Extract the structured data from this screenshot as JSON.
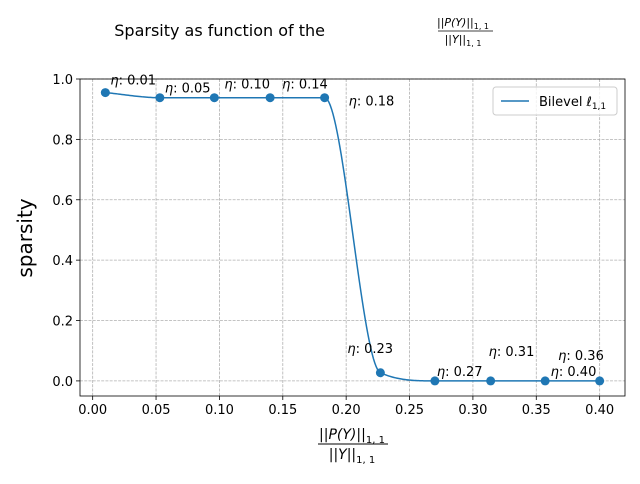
{
  "chart_data": {
    "type": "line",
    "title": {
      "prefix": "Sparsity as function of the ",
      "fraction": {
        "numerator": "||P(Y)||",
        "numerator_sub": "1, 1",
        "denominator": "||Y||",
        "denominator_sub": "1, 1"
      }
    },
    "xlabel": {
      "numerator": "||P(Y)||",
      "numerator_sub": "1, 1",
      "denominator": "||Y||",
      "denominator_sub": "1, 1"
    },
    "ylabel": "sparsity",
    "xlim": [
      -0.01,
      0.42
    ],
    "ylim": [
      -0.05,
      1.0
    ],
    "x_ticks": [
      "0.00",
      "0.05",
      "0.10",
      "0.15",
      "0.20",
      "0.25",
      "0.30",
      "0.35",
      "0.40"
    ],
    "y_ticks": [
      "0.0",
      "0.2",
      "0.4",
      "0.6",
      "0.8",
      "1.0"
    ],
    "grid": true,
    "legend_position": "upper right",
    "series": [
      {
        "name": "Bilevel",
        "name_math": "ℓ",
        "name_sub": "1,1",
        "color": "#1f77b4",
        "x": [
          0.01,
          0.053,
          0.096,
          0.14,
          0.183,
          0.227,
          0.27,
          0.314,
          0.357,
          0.4
        ],
        "y": [
          0.955,
          0.938,
          0.938,
          0.938,
          0.938,
          0.027,
          0.0,
          0.0,
          0.0,
          0.0
        ]
      }
    ],
    "annotations": [
      {
        "eta": "η",
        "value": ": 0.01",
        "x": 0.01,
        "y": 0.955
      },
      {
        "eta": "η",
        "value": ": 0.05",
        "x": 0.053,
        "y": 0.938
      },
      {
        "eta": "η",
        "value": ": 0.10",
        "x": 0.096,
        "y": 0.938
      },
      {
        "eta": "η",
        "value": ": 0.14",
        "x": 0.14,
        "y": 0.938
      },
      {
        "eta": "η",
        "value": ": 0.18",
        "x": 0.183,
        "y": 0.938
      },
      {
        "eta": "η",
        "value": ": 0.23",
        "x": 0.227,
        "y": 0.027
      },
      {
        "eta": "η",
        "value": ": 0.27",
        "x": 0.27,
        "y": 0.0
      },
      {
        "eta": "η",
        "value": ": 0.31",
        "x": 0.314,
        "y": 0.0
      },
      {
        "eta": "η",
        "value": ": 0.36",
        "x": 0.357,
        "y": 0.0
      },
      {
        "eta": "η",
        "value": ": 0.40",
        "x": 0.4,
        "y": 0.0
      }
    ]
  }
}
